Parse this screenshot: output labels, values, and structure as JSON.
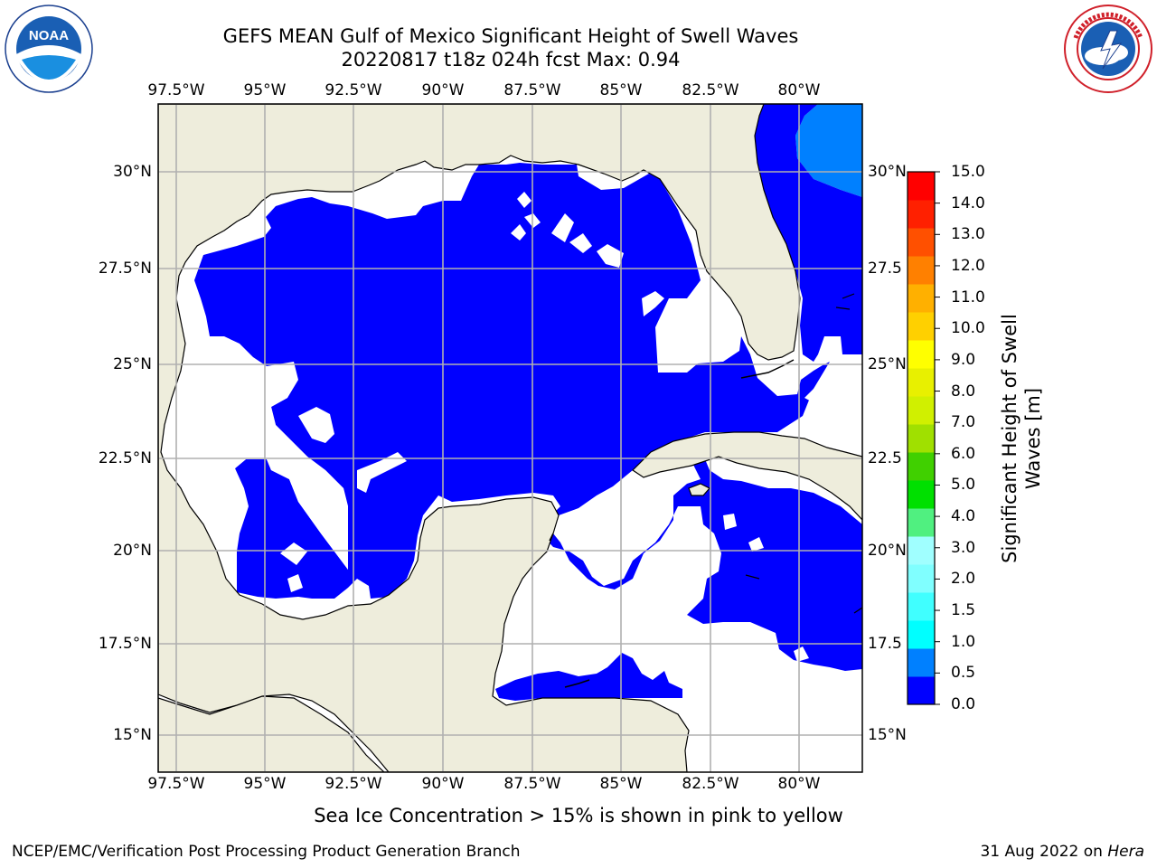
{
  "title_line1": "GEFS MEAN Gulf of Mexico Significant Height of Swell Waves",
  "title_line2": "20220817 t18z 024h fcst   Max: 0.94",
  "logos": {
    "noaa_text": "NOAA",
    "noaa_ring_text": "NATIONAL OCEANIC AND ATMOSPHERIC ADMINISTRATION · U.S. DEPARTMENT OF COMMERCE",
    "nws_ring_text": "NATIONAL WEATHER SERVICE"
  },
  "map": {
    "lon_labels": [
      "97.5°W",
      "95°W",
      "92.5°W",
      "90°W",
      "87.5°W",
      "85°W",
      "82.5°W",
      "80°W"
    ],
    "lat_labels_left": [
      "30°N",
      "27.5°N",
      "25°N",
      "22.5°N",
      "20°N",
      "17.5°N",
      "15°N"
    ],
    "lat_labels_right": [
      "30°N",
      "27.5",
      "25°N",
      "22.5",
      "20°N",
      "17.5",
      "15°N"
    ],
    "colors": {
      "land": "#eeeddc",
      "ocean_no_data": "#ffffff",
      "swell_0_0p5": "#0000ff",
      "swell_0p5_1": "#0080ff",
      "grid": "#b0b0b0"
    }
  },
  "colorbar": {
    "title": "Significant Height of Swell Waves [m]",
    "tick_labels": [
      "0.0",
      "0.5",
      "1.0",
      "1.5",
      "2.0",
      "3.0",
      "4.0",
      "5.0",
      "6.0",
      "7.0",
      "8.0",
      "9.0",
      "10.0",
      "11.0",
      "12.0",
      "13.0",
      "14.0",
      "15.0"
    ],
    "colors": [
      "#0000ff",
      "#0080ff",
      "#00ffff",
      "#40ffff",
      "#80ffff",
      "#a0ffff",
      "#50f080",
      "#00e000",
      "#40d000",
      "#a0e000",
      "#d0f000",
      "#e8f000",
      "#ffff00",
      "#ffd000",
      "#ffb000",
      "#ff8000",
      "#ff5000",
      "#ff2000",
      "#ff0000"
    ]
  },
  "sea_ice_note": "Sea Ice Concentration > 15% is shown in pink to yellow",
  "footer_left": "NCEP/EMC/Verification Post Processing Product Generation Branch",
  "footer_date": "31 Aug 2022 on",
  "footer_machine": "Hera"
}
